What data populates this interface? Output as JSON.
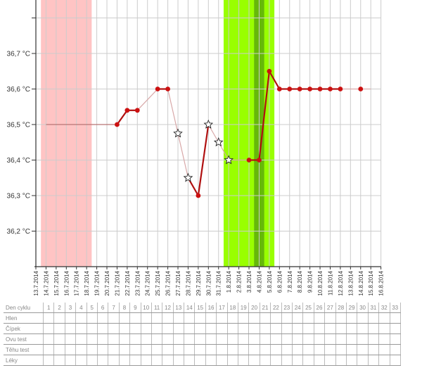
{
  "chart_data": {
    "type": "line",
    "title": "",
    "ylabel": "",
    "xlabel": "",
    "ylim": [
      36.1,
      36.85
    ],
    "y_ticks": [
      36.2,
      36.3,
      36.4,
      36.5,
      36.6,
      36.7,
      36.8
    ],
    "y_tick_labels": [
      "36,2 °C",
      "36,3 °C",
      "36,4 °C",
      "36,5 °C",
      "36,6 °C",
      "36,7 °C",
      ""
    ],
    "grid": true,
    "x_labels": [
      "13.7.2014",
      "14.7.2014",
      "15.7.2014",
      "16.7.2014",
      "17.7.2014",
      "18.7.2014",
      "19.7.2014",
      "20.7.2014",
      "21.7.2014",
      "22.7.2014",
      "23.7.2014",
      "24.7.2014",
      "25.7.2014",
      "26.7.2014",
      "27.7.2014",
      "28.7.2014",
      "29.7.2014",
      "30.7.2014",
      "31.7.2014",
      "1.8.2014",
      "2.8.2014",
      "3.8.2014",
      "4.8.2014",
      "5.8.2014",
      "6.8.2014",
      "7.8.2014",
      "8.8.2014",
      "9.8.2014",
      "10.8.2014",
      "11.8.2014",
      "12.8.2014",
      "13.8.2014",
      "14.8.2014",
      "15.8.2014",
      "16.8.2014"
    ],
    "points": [
      {
        "date": "21.7.2014",
        "value": 36.5,
        "marker": "dot"
      },
      {
        "date": "22.7.2014",
        "value": 36.54,
        "marker": "dot"
      },
      {
        "date": "23.7.2014",
        "value": 36.54,
        "marker": "dot"
      },
      {
        "date": "25.7.2014",
        "value": 36.6,
        "marker": "dot"
      },
      {
        "date": "26.7.2014",
        "value": 36.6,
        "marker": "dot"
      },
      {
        "date": "27.7.2014",
        "value": 36.475,
        "marker": "star"
      },
      {
        "date": "28.7.2014",
        "value": 36.35,
        "marker": "star"
      },
      {
        "date": "29.7.2014",
        "value": 36.3,
        "marker": "dot"
      },
      {
        "date": "30.7.2014",
        "value": 36.5,
        "marker": "star"
      },
      {
        "date": "31.7.2014",
        "value": 36.45,
        "marker": "star"
      },
      {
        "date": "1.8.2014",
        "value": 36.4,
        "marker": "star"
      },
      {
        "date": "3.8.2014",
        "value": 36.4,
        "marker": "dot"
      },
      {
        "date": "4.8.2014",
        "value": 36.4,
        "marker": "dot"
      },
      {
        "date": "5.8.2014",
        "value": 36.65,
        "marker": "dot"
      },
      {
        "date": "6.8.2014",
        "value": 36.6,
        "marker": "dot"
      },
      {
        "date": "7.8.2014",
        "value": 36.6,
        "marker": "dot"
      },
      {
        "date": "8.8.2014",
        "value": 36.6,
        "marker": "dot"
      },
      {
        "date": "9.8.2014",
        "value": 36.6,
        "marker": "dot"
      },
      {
        "date": "10.8.2014",
        "value": 36.6,
        "marker": "dot"
      },
      {
        "date": "11.8.2014",
        "value": 36.6,
        "marker": "dot"
      },
      {
        "date": "12.8.2014",
        "value": 36.6,
        "marker": "dot"
      },
      {
        "date": "14.8.2014",
        "value": 36.6,
        "marker": "dot"
      }
    ],
    "baseline_before": {
      "from": "14.7.2014",
      "to": "21.7.2014",
      "value": 36.5
    },
    "baseline_after": {
      "from": "14.8.2014",
      "to": "15.8.2014",
      "value": 36.6
    },
    "bands": [
      {
        "name": "menstruation",
        "from_day": 1,
        "to_day": 5,
        "color": "#ffc4c4"
      },
      {
        "name": "fertile",
        "from_day": 19,
        "to_day": 23,
        "color": "#99ff00"
      },
      {
        "name": "ovulation",
        "from_day": 22,
        "to_day": 22,
        "color": "#66b80a"
      }
    ],
    "colors": {
      "line": "#b01010",
      "line_faint": "#d8a8a8",
      "dot": "#cc1111",
      "grid": "#cccccc"
    }
  },
  "table": {
    "rows": [
      "Den cyklu",
      "Hlen",
      "Čípek",
      "Ovu test",
      "Těhu test",
      "Léky"
    ],
    "days": [
      "1",
      "2",
      "3",
      "4",
      "5",
      "6",
      "7",
      "8",
      "9",
      "10",
      "11",
      "12",
      "13",
      "14",
      "15",
      "16",
      "17",
      "18",
      "19",
      "20",
      "21",
      "22",
      "23",
      "24",
      "25",
      "26",
      "27",
      "28",
      "29",
      "30",
      "31",
      "32",
      "33"
    ]
  }
}
